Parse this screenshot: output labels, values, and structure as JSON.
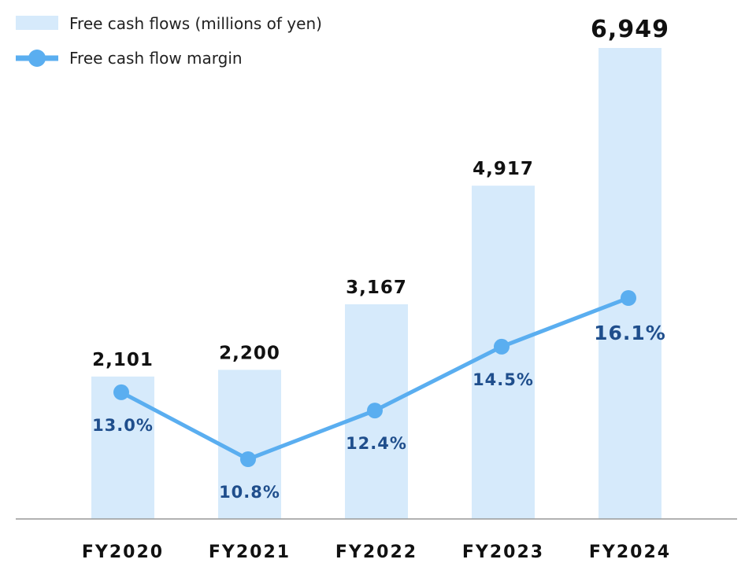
{
  "chart_data": {
    "type": "bar",
    "categories": [
      "FY2020",
      "FY2021",
      "FY2022",
      "FY2023",
      "FY2024"
    ],
    "series": [
      {
        "name": "Free cash flows (millions of yen)",
        "type": "bar",
        "values": [
          2101,
          2200,
          3167,
          4917,
          6949
        ],
        "labels": [
          "2,101",
          "2,200",
          "3,167",
          "4,917",
          "6,949"
        ],
        "color": "#d6eafb"
      },
      {
        "name": "Free cash flow margin",
        "type": "line",
        "values": [
          13.0,
          10.8,
          12.4,
          14.5,
          16.1
        ],
        "labels": [
          "13.0%",
          "10.8%",
          "12.4%",
          "14.5%",
          "16.1%"
        ],
        "color": "#5aaef0",
        "label_color": "#1f4e8c"
      }
    ],
    "legend_position": "top-left",
    "grid": false
  }
}
